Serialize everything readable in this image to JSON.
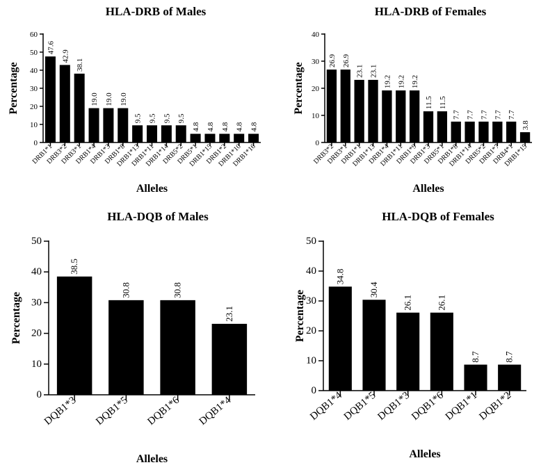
{
  "chart_data": [
    {
      "type": "bar",
      "title": "HLA-DRB of Males",
      "xlabel": "Alleles",
      "ylabel": "Percentage",
      "ylim": [
        0,
        60
      ],
      "yticks": [
        "0",
        "10",
        "20",
        "30",
        "40",
        "50",
        "60"
      ],
      "categories": [
        "DRB1*1",
        "DRB3*2",
        "DRB3*1",
        "DRB1*4",
        "DRB1*3",
        "DRB1*8",
        "DRB1*13",
        "DRB1*11",
        "DRB1*14",
        "DRB5*2",
        "DRB5*1",
        "DRB1*15",
        "DRB1*2",
        "DRB1*10",
        "DRB1*16"
      ],
      "values": [
        47.6,
        42.9,
        38.1,
        19.0,
        19.0,
        19.0,
        9.5,
        9.5,
        9.5,
        9.5,
        4.8,
        4.8,
        4.8,
        4.8,
        4.8
      ],
      "value_labels": [
        "47.6",
        "42.9",
        "38.1",
        "19.0",
        "19.0",
        "19.0",
        "9.5",
        "9.5",
        "9.5",
        "9.5",
        "4.8",
        "4.8",
        "4.8",
        "4.8",
        "4.8"
      ],
      "bar_color": "#000000",
      "grid": false
    },
    {
      "type": "bar",
      "title": "HLA-DRB of Females",
      "xlabel": "Alleles",
      "ylabel": "Percentage",
      "ylim": [
        0,
        40
      ],
      "yticks": [
        "0",
        "10",
        "20",
        "30",
        "40"
      ],
      "categories": [
        "DRB3*2",
        "DRB3*1",
        "DRB1*1",
        "DRB1*13",
        "DRB1*4",
        "DRB1*11",
        "DRB1*9",
        "DRB1*3",
        "DRB5*1",
        "DRB1*8",
        "DRB1*14",
        "DRB5*2",
        "DRB1*7",
        "DRB4*1",
        "DRB1*15"
      ],
      "values": [
        26.9,
        26.9,
        23.1,
        23.1,
        19.2,
        19.2,
        19.2,
        11.5,
        11.5,
        7.7,
        7.7,
        7.7,
        7.7,
        7.7,
        3.8
      ],
      "value_labels": [
        "26.9",
        "26.9",
        "23.1",
        "23.1",
        "19.2",
        "19.2",
        "19.2",
        "11.5",
        "11.5",
        "7.7",
        "7.7",
        "7.7",
        "7.7",
        "7.7",
        "3.8"
      ],
      "bar_color": "#000000",
      "grid": false
    },
    {
      "type": "bar",
      "title": "HLA-DQB of Males",
      "xlabel": "Alleles",
      "ylabel": "Percentage",
      "ylim": [
        0,
        50
      ],
      "yticks": [
        "0",
        "10",
        "20",
        "30",
        "40",
        "50"
      ],
      "categories": [
        "DQB1*3",
        "DQB1*5",
        "DQB1*6",
        "DQB1*4"
      ],
      "values": [
        38.5,
        30.8,
        30.8,
        23.1
      ],
      "value_labels": [
        "38.5",
        "30.8",
        "30.8",
        "23.1"
      ],
      "bar_color": "#000000",
      "grid": false
    },
    {
      "type": "bar",
      "title": "HLA-DQB of Females",
      "xlabel": "Alleles",
      "ylabel": "Percentage",
      "ylim": [
        0,
        50
      ],
      "yticks": [
        "0",
        "10",
        "20",
        "30",
        "40",
        "50"
      ],
      "categories": [
        "DQB1*4",
        "DQB1*5",
        "DQB1*3",
        "DQB1*6",
        "DQB1*1",
        "DQB1*2"
      ],
      "values": [
        34.8,
        30.4,
        26.1,
        26.1,
        8.7,
        8.7
      ],
      "value_labels": [
        "34.8",
        "30.4",
        "26.1",
        "26.1",
        "8.7",
        "8.7"
      ],
      "bar_color": "#000000",
      "grid": false
    }
  ]
}
